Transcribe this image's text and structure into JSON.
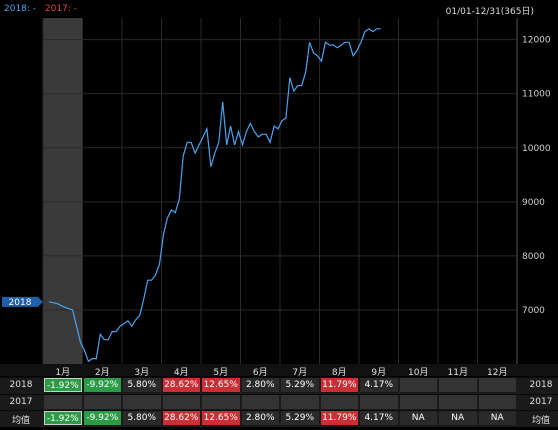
{
  "legend": {
    "s2018": "2018: -",
    "s2017": "2017: -",
    "colors": {
      "s2018": "#4aa3f0",
      "s2017": "#e04646"
    }
  },
  "range_label": "01/01-12/31(365日)",
  "current_tag": "2018",
  "rows": {
    "r2018": "2018",
    "r2017": "2017",
    "avg": "均值"
  },
  "months": [
    "1月",
    "2月",
    "3月",
    "4月",
    "5月",
    "6月",
    "7月",
    "8月",
    "9月",
    "10月",
    "11月",
    "12月"
  ],
  "returns_2018": [
    "-1.92%",
    "-9.92%",
    "5.80%",
    "28.62%",
    "12.65%",
    "2.80%",
    "5.29%",
    "11.79%",
    "4.17%",
    "",
    "",
    ""
  ],
  "returns_avg": [
    "-1.92%",
    "-9.92%",
    "5.80%",
    "28.62%",
    "12.65%",
    "2.80%",
    "5.29%",
    "11.79%",
    "4.17%",
    "NA",
    "NA",
    "NA"
  ],
  "returns_num": [
    -1.92,
    -9.92,
    5.8,
    28.62,
    12.65,
    2.8,
    5.29,
    11.79,
    4.17,
    null,
    null,
    null
  ],
  "chart_data": {
    "type": "line",
    "x_unit": "month",
    "yticks": [
      7000,
      8000,
      9000,
      10000,
      11000,
      12000
    ],
    "ylim": [
      6000,
      12400
    ],
    "series": [
      {
        "name": "2018",
        "color": "#4aa3f0",
        "x": [
          0.15,
          0.35,
          0.55,
          0.75,
          0.95,
          1.05,
          1.15,
          1.25,
          1.35,
          1.45,
          1.55,
          1.65,
          1.75,
          1.85,
          1.95,
          2.05,
          2.15,
          2.25,
          2.35,
          2.45,
          2.55,
          2.65,
          2.75,
          2.85,
          2.95,
          3.05,
          3.15,
          3.25,
          3.35,
          3.45,
          3.55,
          3.65,
          3.75,
          3.85,
          3.95,
          4.05,
          4.15,
          4.25,
          4.35,
          4.45,
          4.55,
          4.65,
          4.75,
          4.85,
          4.95,
          5.05,
          5.15,
          5.25,
          5.35,
          5.45,
          5.55,
          5.65,
          5.75,
          5.85,
          5.95,
          6.05,
          6.15,
          6.25,
          6.35,
          6.45,
          6.55,
          6.65,
          6.75,
          6.85,
          6.95,
          7.05,
          7.15,
          7.25,
          7.35,
          7.45,
          7.55,
          7.65,
          7.75,
          7.85,
          7.95,
          8.05,
          8.15,
          8.25,
          8.35,
          8.45,
          8.55
        ],
        "y": [
          7150,
          7120,
          7050,
          7000,
          6400,
          6250,
          6050,
          6100,
          6100,
          6550,
          6450,
          6450,
          6600,
          6600,
          6700,
          6750,
          6800,
          6700,
          6820,
          6900,
          7200,
          7550,
          7550,
          7650,
          7850,
          8400,
          8700,
          8850,
          8800,
          9050,
          9850,
          10100,
          10100,
          9900,
          10050,
          10200,
          10350,
          9650,
          9900,
          10100,
          10850,
          10050,
          10400,
          10050,
          10300,
          10050,
          10300,
          10450,
          10300,
          10200,
          10250,
          10250,
          10100,
          10400,
          10350,
          10500,
          10550,
          11300,
          11050,
          11150,
          11150,
          11400,
          11950,
          11750,
          11700,
          11600,
          11950,
          11900,
          11900,
          11850,
          11900,
          11950,
          11950,
          11700,
          11800,
          11950,
          12150,
          12200,
          12150,
          12200,
          12200
        ]
      }
    ],
    "categories": [
      "1月",
      "2月",
      "3月",
      "4月",
      "5月",
      "6月",
      "7月",
      "8月",
      "9月",
      "10月",
      "11月",
      "12月"
    ]
  }
}
